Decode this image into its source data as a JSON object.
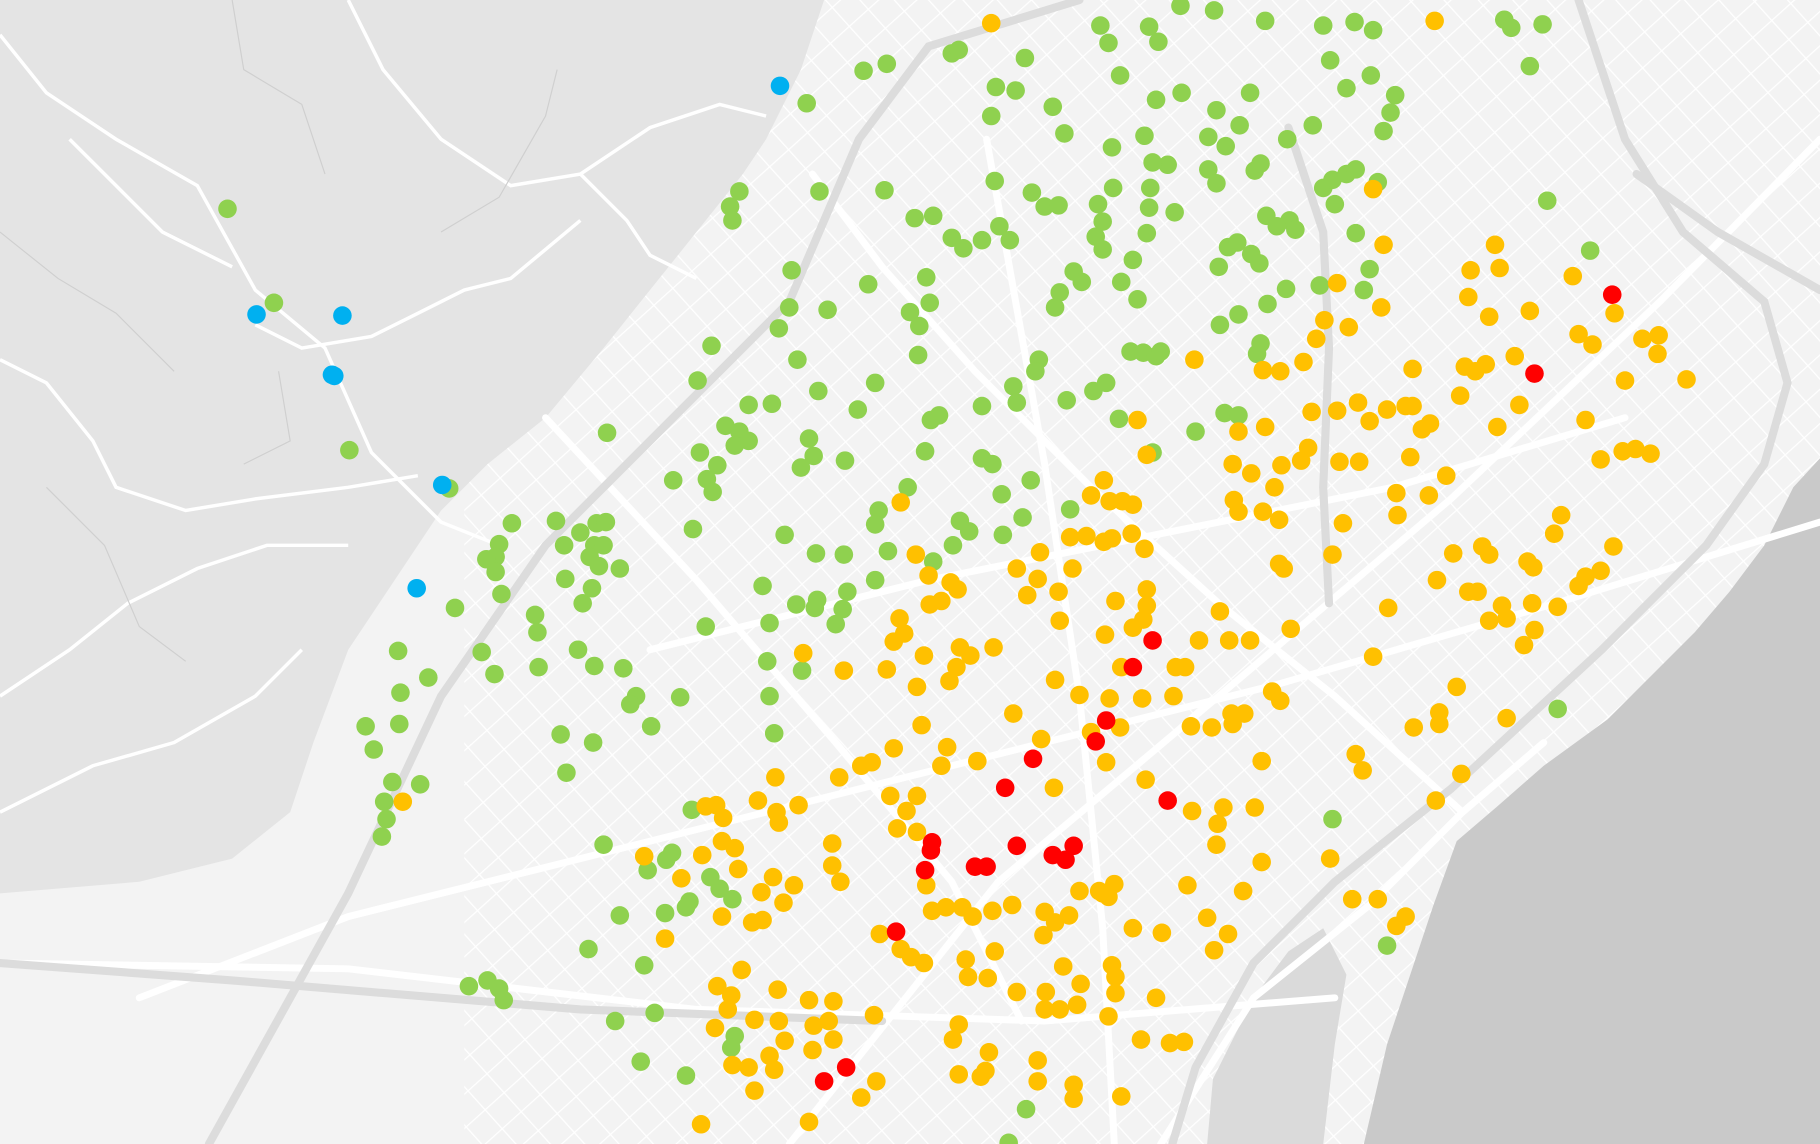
{
  "map": {
    "land_color": "#f3f3f3",
    "hills_color": "#e4e4e4",
    "sea_color": "#c9c9c9",
    "road_color": "#ffffff",
    "highway_color": "#dcdcdc"
  },
  "markers": {
    "categories": [
      {
        "key": "green",
        "color": "#8fd14f"
      },
      {
        "key": "orange",
        "color": "#ffc000"
      },
      {
        "key": "red",
        "color": "#ff0000"
      },
      {
        "key": "blue",
        "color": "#00b0f0"
      }
    ]
  }
}
